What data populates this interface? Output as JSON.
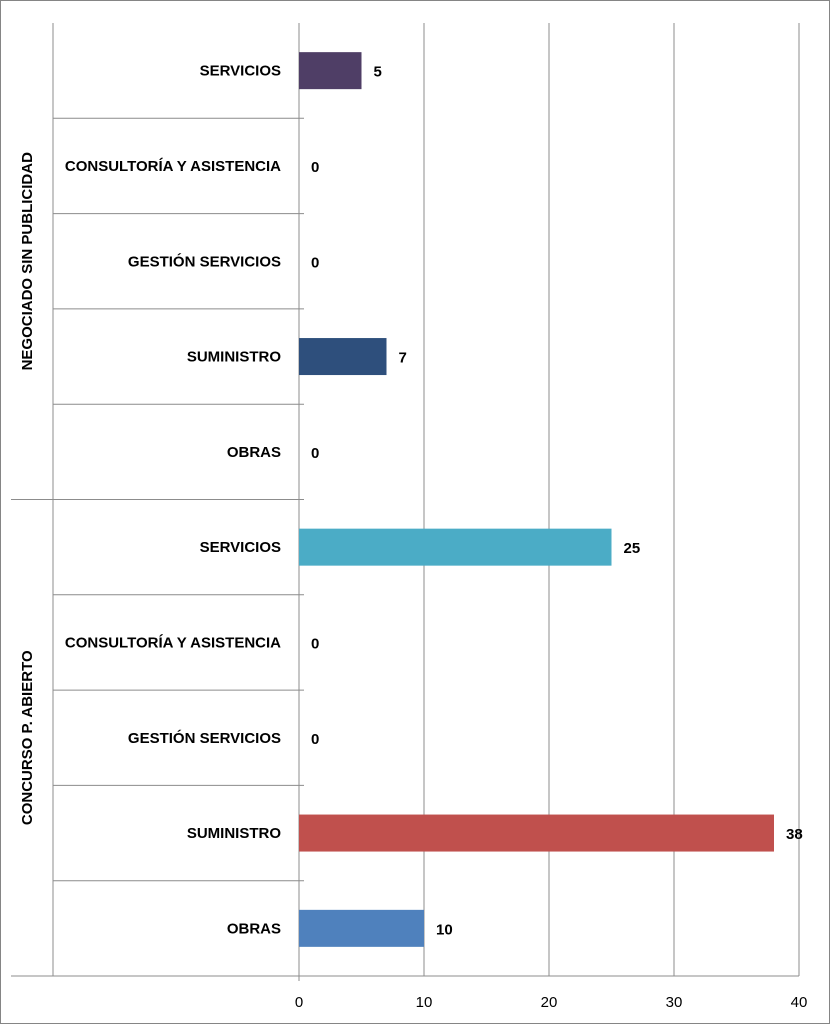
{
  "chart_data": {
    "type": "bar",
    "orientation": "horizontal",
    "title": "",
    "xlabel": "",
    "ylabel": "",
    "xlim": [
      0,
      40
    ],
    "x_ticks": [
      "0",
      "10",
      "20",
      "30",
      "40"
    ],
    "grid": true,
    "legend": "none",
    "groups": [
      {
        "name": "NEGOCIADO SIN PUBLICIDAD",
        "categories": [
          "SERVICIOS",
          "CONSULTORÍA Y ASISTENCIA",
          "GESTIÓN SERVICIOS",
          "SUMINISTRO",
          "OBRAS"
        ],
        "values": [
          5,
          0,
          0,
          7,
          0
        ],
        "colors": [
          "#4f3e66",
          "#4f3e66",
          "#4f3e66",
          "#2e4f7c",
          "#2e4f7c"
        ]
      },
      {
        "name": "CONCURSO P. ABIERTO",
        "categories": [
          "SERVICIOS",
          "CONSULTORÍA Y ASISTENCIA",
          "GESTIÓN SERVICIOS",
          "SUMINISTRO",
          "OBRAS"
        ],
        "values": [
          25,
          0,
          0,
          38,
          10
        ],
        "colors": [
          "#4bacc6",
          "#4bacc6",
          "#4bacc6",
          "#c0504d",
          "#4f81bd"
        ]
      }
    ]
  }
}
